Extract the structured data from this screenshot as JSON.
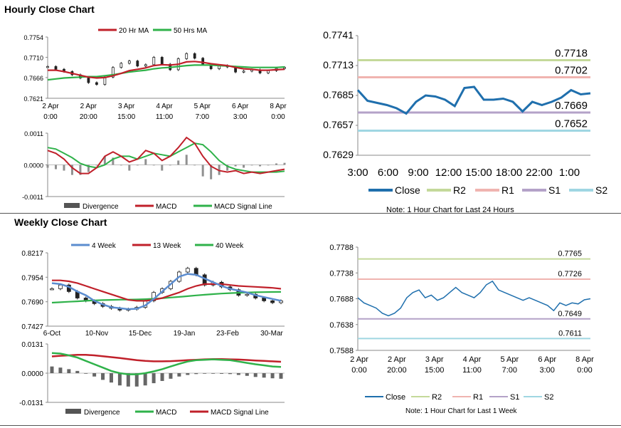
{
  "sections": {
    "hourly_title": "Hourly Close Chart",
    "weekly_title": "Weekly Close Chart"
  },
  "colors": {
    "close": "#1f6fad",
    "ma_red": "#c0202a",
    "ma_green": "#2fb24a",
    "r2": "#c4d99a",
    "r1": "#f0b4b0",
    "s1": "#b4a2c8",
    "s2": "#9fd6e2",
    "week4": "#5b8ccf",
    "candle": "#222222",
    "divergence": "#909090"
  },
  "chart_data": [
    {
      "id": "hourly_price",
      "type": "candlestick",
      "title": "",
      "legend": [
        "20 Hr MA",
        "50 Hrs MA"
      ],
      "y_ticks": [
        "0.7754",
        "0.7710",
        "0.7666",
        "0.7621"
      ],
      "ylim": [
        0.7621,
        0.7754
      ],
      "x_tick_labels": [
        [
          "2 Apr",
          "0:00"
        ],
        [
          "2 Apr",
          "20:00"
        ],
        [
          "3 Apr",
          "15:00"
        ],
        [
          "4 Apr",
          "11:00"
        ],
        [
          "5 Apr",
          "7:00"
        ],
        [
          "6 Apr",
          "3:00"
        ],
        [
          "8 Apr",
          "0:00"
        ]
      ],
      "close": [
        0.769,
        0.7684,
        0.7679,
        0.7672,
        0.7665,
        0.7655,
        0.7651,
        0.7667,
        0.7688,
        0.7697,
        0.7702,
        0.7691,
        0.7694,
        0.771,
        0.7695,
        0.7683,
        0.7707,
        0.7718,
        0.7708,
        0.7694,
        0.7685,
        0.7692,
        0.7689,
        0.7678,
        0.768,
        0.7683,
        0.7676,
        0.7681,
        0.7686,
        0.7688
      ],
      "ma20": [
        0.7682,
        0.7682,
        0.7679,
        0.7675,
        0.7671,
        0.7667,
        0.7665,
        0.7666,
        0.767,
        0.7675,
        0.7681,
        0.7684,
        0.7687,
        0.7692,
        0.7694,
        0.7693,
        0.7695,
        0.77,
        0.7701,
        0.7699,
        0.7696,
        0.7694,
        0.7692,
        0.7688,
        0.7685,
        0.7684,
        0.7682,
        0.7682,
        0.7683,
        0.7684
      ],
      "ma50": [
        0.7661,
        0.7663,
        0.7665,
        0.7666,
        0.7667,
        0.7668,
        0.7668,
        0.767,
        0.7672,
        0.7675,
        0.7678,
        0.768,
        0.7682,
        0.7685,
        0.7687,
        0.7688,
        0.769,
        0.7692,
        0.7693,
        0.7693,
        0.7693,
        0.7692,
        0.7691,
        0.769,
        0.7689,
        0.7688,
        0.7688,
        0.7688,
        0.7688,
        0.7689
      ]
    },
    {
      "id": "hourly_macd",
      "type": "line+bar",
      "legend": [
        "Divergence",
        "MACD",
        "MACD Signal Line"
      ],
      "y_ticks": [
        "0.0011",
        "0.0000",
        "-0.0011"
      ],
      "ylim": [
        -0.0011,
        0.0011
      ],
      "macd": [
        0.0005,
        0.0004,
        0.0002,
        -0.0001,
        -0.0003,
        -0.0003,
        -0.0001,
        0.0003,
        0.00045,
        0.0003,
        0.0001,
        0.0002,
        0.0005,
        0.0004,
        0.00015,
        0.0003,
        0.0006,
        0.00095,
        0.00075,
        0.0003,
        -5e-05,
        -0.0002,
        -0.00025,
        -0.0002,
        -0.0003,
        -0.00025,
        -0.0003,
        -0.00025,
        -0.0002,
        -0.00015
      ],
      "signal": [
        0.0006,
        0.00055,
        0.0004,
        0.00025,
        5e-05,
        -5e-05,
        -0.0001,
        0.0,
        0.0002,
        0.0003,
        0.0003,
        0.0002,
        0.0003,
        0.0004,
        0.00035,
        0.0003,
        0.00045,
        0.0006,
        0.00075,
        0.0007,
        0.00045,
        0.00015,
        -5e-05,
        -0.00015,
        -0.0002,
        -0.00025,
        -0.00025,
        -0.00025,
        -0.00025,
        -0.00022
      ],
      "divergence": [
        -0.0001,
        -0.00015,
        -0.0002,
        -0.00035,
        -0.00035,
        -0.00025,
        0.0,
        0.0003,
        0.00025,
        0.0,
        -0.0002,
        0.0,
        0.0002,
        0.0,
        -0.0002,
        0.0,
        0.00015,
        0.00035,
        0.0,
        -0.0004,
        -0.0005,
        -0.00035,
        -0.0002,
        -5e-05,
        -0.0001,
        0.0,
        -5e-05,
        0.0,
        5e-05,
        7e-05
      ]
    },
    {
      "id": "hourly_24h",
      "type": "line",
      "legend": [
        "Close",
        "R2",
        "R1",
        "S1",
        "S2"
      ],
      "y_ticks": [
        "0.7741",
        "0.7713",
        "0.7685",
        "0.7657",
        "0.7629"
      ],
      "ylim": [
        0.7629,
        0.7741
      ],
      "x_tick_labels": [
        "3:00",
        "6:00",
        "9:00",
        "12:00",
        "15:00",
        "18:00",
        "22:00",
        "1:00"
      ],
      "levels": [
        {
          "name": "R2",
          "value": 0.7718,
          "label": "0.7718"
        },
        {
          "name": "R1",
          "value": 0.7702,
          "label": "0.7702"
        },
        {
          "name": "S1",
          "value": 0.7669,
          "label": "0.7669"
        },
        {
          "name": "S2",
          "value": 0.7652,
          "label": "0.7652"
        }
      ],
      "close": [
        0.769,
        0.768,
        0.7678,
        0.7676,
        0.7673,
        0.7668,
        0.7679,
        0.7685,
        0.7684,
        0.7681,
        0.7675,
        0.7692,
        0.7693,
        0.7681,
        0.7681,
        0.7682,
        0.7679,
        0.767,
        0.7679,
        0.7676,
        0.7679,
        0.7683,
        0.769,
        0.7686,
        0.7687
      ],
      "note": "Note: 1 Hour Chart for Last 24 Hours"
    },
    {
      "id": "weekly_price",
      "type": "candlestick",
      "legend": [
        "4 Week",
        "13 Week",
        "40 Week"
      ],
      "y_ticks": [
        "0.8217",
        "0.7954",
        "0.7690",
        "0.7427"
      ],
      "ylim": [
        0.7427,
        0.8217
      ],
      "x_tick_labels": [
        "6-Oct",
        "10-Nov",
        "15-Dec",
        "19-Jan",
        "23-Feb",
        "30-Mar"
      ],
      "close": [
        0.783,
        0.787,
        0.78,
        0.773,
        0.77,
        0.767,
        0.764,
        0.762,
        0.76,
        0.761,
        0.763,
        0.77,
        0.779,
        0.783,
        0.791,
        0.801,
        0.805,
        0.798,
        0.787,
        0.79,
        0.785,
        0.782,
        0.776,
        0.777,
        0.773,
        0.77,
        0.768,
        0.77
      ],
      "w4": [
        0.789,
        0.788,
        0.785,
        0.78,
        0.776,
        0.77,
        0.766,
        0.763,
        0.762,
        0.761,
        0.7615,
        0.765,
        0.772,
        0.78,
        0.788,
        0.796,
        0.799,
        0.798,
        0.794,
        0.79,
        0.786,
        0.783,
        0.781,
        0.779,
        0.776,
        0.774,
        0.772,
        0.77
      ],
      "w13": [
        0.792,
        0.792,
        0.791,
        0.789,
        0.786,
        0.783,
        0.78,
        0.777,
        0.774,
        0.771,
        0.77,
        0.77,
        0.771,
        0.773,
        0.776,
        0.779,
        0.783,
        0.786,
        0.788,
        0.788,
        0.788,
        0.787,
        0.786,
        0.7855,
        0.785,
        0.7845,
        0.784,
        0.783
      ],
      "w40": [
        0.768,
        0.7685,
        0.769,
        0.7695,
        0.77,
        0.7705,
        0.7708,
        0.771,
        0.7712,
        0.7713,
        0.7715,
        0.7718,
        0.7722,
        0.7728,
        0.7735,
        0.7742,
        0.775,
        0.7758,
        0.7765,
        0.7772,
        0.7778,
        0.7783,
        0.7787,
        0.779,
        0.7792,
        0.7794,
        0.7795,
        0.7796
      ]
    },
    {
      "id": "weekly_macd",
      "type": "line+bar",
      "legend": [
        "Divergence",
        "MACD",
        "MACD Signal Line"
      ],
      "y_ticks": [
        "0.0131",
        "0.0000",
        "-0.0131"
      ],
      "ylim": [
        -0.0131,
        0.0131
      ],
      "macd": [
        0.009,
        0.0088,
        0.008,
        0.007,
        0.0055,
        0.004,
        0.0025,
        0.001,
        0.0,
        -0.0005,
        -0.0005,
        0.0,
        0.0008,
        0.0018,
        0.003,
        0.0042,
        0.0052,
        0.0058,
        0.006,
        0.0062,
        0.006,
        0.0058,
        0.0052,
        0.0046,
        0.004,
        0.0035,
        0.003,
        0.0028
      ],
      "signal": [
        0.0075,
        0.0078,
        0.008,
        0.0082,
        0.0082,
        0.008,
        0.0076,
        0.0072,
        0.0068,
        0.0063,
        0.0058,
        0.0055,
        0.0053,
        0.0053,
        0.0054,
        0.0056,
        0.0058,
        0.006,
        0.0062,
        0.0063,
        0.0063,
        0.0062,
        0.0061,
        0.0059,
        0.0057,
        0.0055,
        0.0053,
        0.0051
      ],
      "divergence": [
        0.003,
        0.0025,
        0.0018,
        0.001,
        0.0,
        -0.0015,
        -0.003,
        -0.0042,
        -0.0055,
        -0.006,
        -0.006,
        -0.0055,
        -0.0045,
        -0.0035,
        -0.0025,
        -0.0015,
        -0.0008,
        -0.0004,
        -0.0002,
        -0.0002,
        -0.0003,
        -0.0004,
        -0.0008,
        -0.0012,
        -0.0017,
        -0.002,
        -0.0023,
        -0.0025
      ]
    },
    {
      "id": "weekly_1w",
      "type": "line",
      "legend": [
        "Close",
        "R2",
        "R1",
        "S1",
        "S2"
      ],
      "y_ticks": [
        "0.7788",
        "0.7738",
        "0.7688",
        "0.7638",
        "0.7588"
      ],
      "ylim": [
        0.7588,
        0.7788
      ],
      "x_tick_labels": [
        [
          "2 Apr",
          "0:00"
        ],
        [
          "2 Apr",
          "20:00"
        ],
        [
          "3 Apr",
          "15:00"
        ],
        [
          "4 Apr",
          "11:00"
        ],
        [
          "5 Apr",
          "7:00"
        ],
        [
          "6 Apr",
          "3:00"
        ],
        [
          "8 Apr",
          "0:00"
        ]
      ],
      "levels": [
        {
          "name": "R2",
          "value": 0.7765,
          "label": "0.7765"
        },
        {
          "name": "R1",
          "value": 0.7726,
          "label": "0.7726"
        },
        {
          "name": "S1",
          "value": 0.7649,
          "label": "0.7649"
        },
        {
          "name": "S2",
          "value": 0.7611,
          "label": "0.7611"
        }
      ],
      "close": [
        0.769,
        0.768,
        0.7675,
        0.767,
        0.766,
        0.7655,
        0.766,
        0.767,
        0.769,
        0.77,
        0.7705,
        0.769,
        0.7695,
        0.7685,
        0.769,
        0.77,
        0.771,
        0.77,
        0.7695,
        0.769,
        0.77,
        0.7715,
        0.7722,
        0.7705,
        0.77,
        0.7695,
        0.769,
        0.7685,
        0.769,
        0.7685,
        0.768,
        0.7675,
        0.7665,
        0.768,
        0.7675,
        0.768,
        0.7678,
        0.7686,
        0.7688
      ],
      "note": "Note: 1 Hour Chart for Last 1 Week"
    }
  ]
}
